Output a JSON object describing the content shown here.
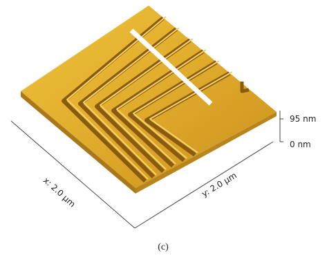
{
  "scale": {
    "top": "95 nm",
    "bottom": "0 nm"
  },
  "axes": {
    "x": "x: 2.0 µm",
    "y": "y: 2.0 µm"
  },
  "caption": "(c)"
}
